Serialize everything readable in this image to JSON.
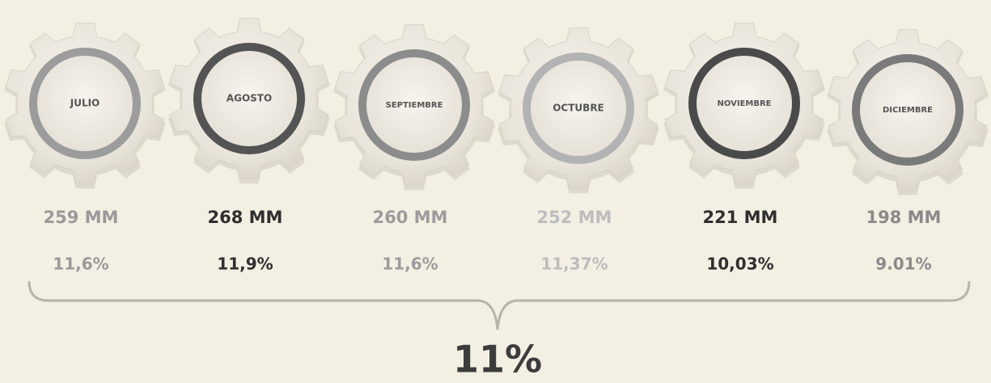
{
  "items": [
    {
      "month": "JULIO",
      "amount": "259 MM",
      "percent": "11,6%"
    },
    {
      "month": "AGOSTO",
      "amount": "268 MM",
      "percent": "11,9%"
    },
    {
      "month": "SEPTIEMBRE",
      "amount": "260 MM",
      "percent": "11,6%"
    },
    {
      "month": "OCTUBRE",
      "amount": "252 MM",
      "percent": "11,37%"
    },
    {
      "month": "NOVIEMBRE",
      "amount": "221 MM",
      "percent": "10,03%"
    },
    {
      "month": "DICIEMBRE",
      "amount": "198 MM",
      "percent": "9.01%"
    }
  ],
  "total": "11%"
}
